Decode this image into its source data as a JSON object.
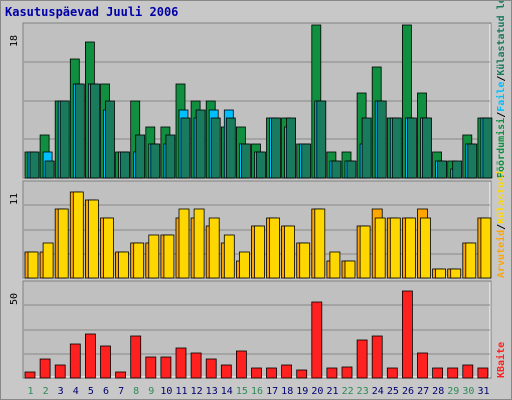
{
  "title": "Kasutuspäevad Juuli 2006",
  "colors": {
    "background": "#cccccc",
    "panel": "#c0c0c0",
    "title": "#0000aa",
    "pages": "#1a7a5e",
    "files": "#00bfff",
    "hits": "#0f8f3f",
    "visits": "#ffa500",
    "sites": "#ffd700",
    "kbytes": "#ff2020",
    "weekend_day": "#2e8b57",
    "weekday": "#00006e"
  },
  "legend_top": [
    {
      "key": "pages",
      "text": "Pöördumisi"
    },
    {
      "key": "sep",
      "text": "/"
    },
    {
      "key": "files",
      "text": "Faile"
    },
    {
      "key": "sep",
      "text": "/"
    },
    {
      "key": "pages_hits",
      "text": "Külastatud lehti"
    }
  ],
  "legend_mid": [
    {
      "key": "visits",
      "text": "Arvuteid"
    },
    {
      "key": "sep",
      "text": "/"
    },
    {
      "key": "sites",
      "text": "Külastusi"
    }
  ],
  "legend_bottom": [
    {
      "key": "kbytes",
      "text": "KBaite"
    }
  ],
  "chart_data": {
    "type": "bar",
    "title": "Kasutuspäevad Juuli 2006",
    "categories": [
      "1",
      "2",
      "3",
      "4",
      "5",
      "6",
      "7",
      "8",
      "9",
      "10",
      "11",
      "12",
      "13",
      "14",
      "15",
      "16",
      "17",
      "18",
      "19",
      "20",
      "21",
      "22",
      "23",
      "24",
      "25",
      "26",
      "27",
      "28",
      "29",
      "30",
      "31"
    ],
    "weekend_days": [
      "1",
      "2",
      "8",
      "9",
      "15",
      "16",
      "22",
      "23",
      "29",
      "30"
    ],
    "panels": [
      {
        "id": "top",
        "ymax_label": "18",
        "ylim": [
          0,
          18
        ],
        "series": [
          {
            "name": "Pöördumisi",
            "key": "hits",
            "values": [
              3,
              5,
              9,
              14,
              16,
              11,
              3,
              9,
              6,
              6,
              11,
              9,
              9,
              6,
              6,
              4,
              7,
              7,
              4,
              18,
              3,
              3,
              10,
              13,
              7,
              18,
              10,
              3,
              2,
              5,
              7
            ]
          },
          {
            "name": "Faile",
            "key": "files",
            "values": [
              3,
              3,
              9,
              11,
              11,
              8,
              3,
              3,
              4,
              4,
              8,
              7,
              8,
              8,
              4,
              3,
              7,
              6,
              4,
              9,
              2,
              2,
              4,
              9,
              7,
              7,
              7,
              2,
              1,
              4,
              7
            ]
          },
          {
            "name": "Külastatud lehti",
            "key": "pages",
            "values": [
              3,
              2,
              9,
              11,
              11,
              9,
              3,
              5,
              4,
              5,
              7,
              8,
              7,
              7,
              4,
              3,
              7,
              7,
              4,
              9,
              2,
              2,
              7,
              9,
              7,
              7,
              7,
              2,
              2,
              4,
              7
            ]
          }
        ]
      },
      {
        "id": "middle",
        "ymax_label": "11",
        "ylim": [
          0,
          11
        ],
        "series": [
          {
            "name": "Arvuteid",
            "key": "visits",
            "values": [
              3,
              3,
              8,
              10,
              9,
              7,
              3,
              4,
              4,
              5,
              7,
              7,
              6,
              4,
              2,
              6,
              7,
              6,
              4,
              8,
              2,
              2,
              6,
              8,
              7,
              7,
              8,
              1,
              1,
              4,
              7
            ]
          },
          {
            "name": "Külastusi",
            "key": "sites",
            "values": [
              3,
              4,
              8,
              10,
              9,
              7,
              3,
              4,
              5,
              5,
              8,
              8,
              7,
              5,
              3,
              6,
              7,
              6,
              4,
              8,
              3,
              2,
              6,
              7,
              7,
              7,
              7,
              1,
              1,
              4,
              7
            ]
          }
        ]
      },
      {
        "id": "bottom",
        "ymax_label": "50",
        "ylim": [
          0,
          50
        ],
        "series": [
          {
            "name": "KBaite",
            "key": "kbytes",
            "values": [
              3,
              10,
              7,
              18,
              23,
              17,
              3,
              22,
              11,
              11,
              16,
              13,
              10,
              7,
              14,
              5,
              5,
              7,
              4,
              40,
              5,
              6,
              20,
              22,
              5,
              46,
              13,
              5,
              5,
              7,
              5
            ]
          }
        ]
      }
    ]
  }
}
